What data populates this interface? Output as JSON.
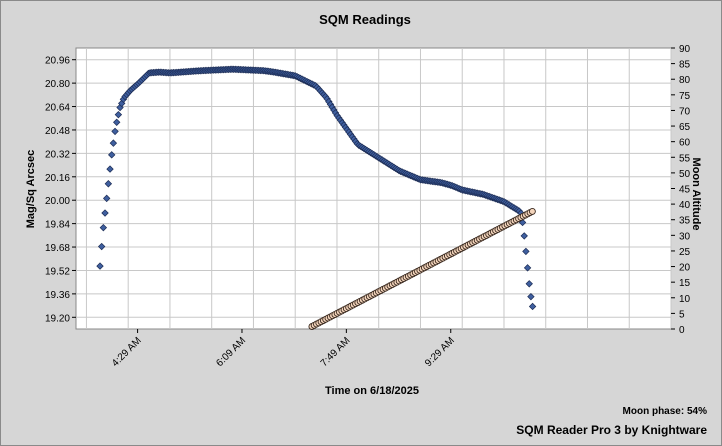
{
  "chart_data": {
    "type": "scatter",
    "title": "SQM Readings",
    "xlabel": "Time on 6/18/2025",
    "ylabel": "Mag/Sq Arcsec",
    "y2label": "Moon Altitude",
    "x_ticks": [
      "4:29 AM",
      "6:09 AM",
      "7:49 AM",
      "9:29 AM"
    ],
    "x_range_minutes": [
      210,
      780
    ],
    "y_ticks": [
      "19.20",
      "19.36",
      "19.52",
      "19.68",
      "19.84",
      "20.00",
      "20.16",
      "20.32",
      "20.48",
      "20.64",
      "20.80",
      "20.96"
    ],
    "ylim": [
      19.12,
      21.04
    ],
    "y2_ticks": [
      "0",
      "5",
      "10",
      "15",
      "20",
      "25",
      "30",
      "35",
      "40",
      "45",
      "50",
      "55",
      "60",
      "65",
      "70",
      "75",
      "80",
      "85",
      "90"
    ],
    "y2lim": [
      0,
      90
    ],
    "grid": true,
    "series": [
      {
        "marker": "diamond",
        "color": "#3f5f9f",
        "x": [
          233,
          236,
          240,
          244,
          248,
          252,
          256,
          262,
          270,
          280,
          290,
          300,
          330,
          360,
          390,
          400,
          420,
          440,
          450,
          460,
          470,
          480,
          500,
          520,
          540,
          560,
          570,
          580,
          600,
          620,
          636,
          638,
          640,
          642,
          644,
          646,
          648
        ],
        "y": [
          19.55,
          19.8,
          20.05,
          20.3,
          20.5,
          20.63,
          20.7,
          20.75,
          20.8,
          20.87,
          20.875,
          20.87,
          20.885,
          20.895,
          20.885,
          20.875,
          20.85,
          20.78,
          20.7,
          20.58,
          20.48,
          20.38,
          20.29,
          20.2,
          20.14,
          20.12,
          20.1,
          20.07,
          20.04,
          19.99,
          19.92,
          19.84,
          19.72,
          19.58,
          19.44,
          19.33,
          19.25
        ]
      },
      {
        "name": "Moon",
        "marker": "circle",
        "color": "#f4d5bc",
        "x": [
          436,
          648
        ],
        "y": [
          0.8,
          37.8
        ]
      }
    ],
    "annotations": [
      "Moon phase: 54%",
      "SQM Reader Pro 3 by Knightware"
    ]
  }
}
